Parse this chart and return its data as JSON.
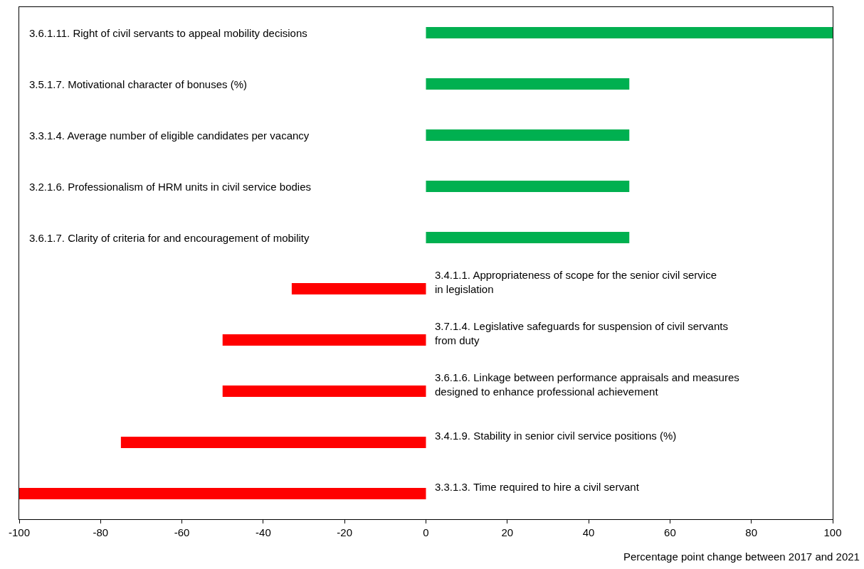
{
  "chart_data": {
    "type": "bar",
    "orientation": "horizontal",
    "categories": [
      "3.6.1.11. Right of civil servants to appeal mobility decisions",
      "3.5.1.7. Motivational character of bonuses (%)",
      "3.3.1.4. Average number of eligible candidates per vacancy",
      "3.2.1.6. Professionalism of HRM units in civil service bodies",
      "3.6.1.7. Clarity of criteria for and encouragement of mobility",
      "3.4.1.1. Appropriateness of scope for the senior civil service\nin legislation",
      "3.7.1.4. Legislative safeguards for suspension of civil servants\nfrom duty",
      "3.6.1.6. Linkage between performance appraisals and measures\ndesigned to enhance professional achievement",
      "3.4.1.9. Stability in senior civil service positions (%)",
      "3.3.1.3. Time required to hire a civil servant"
    ],
    "values": [
      100,
      50,
      50,
      50,
      50,
      -33,
      -50,
      -50,
      -75,
      -100
    ],
    "colors": [
      "#00b050",
      "#00b050",
      "#00b050",
      "#00b050",
      "#00b050",
      "#ff0000",
      "#ff0000",
      "#ff0000",
      "#ff0000",
      "#ff0000"
    ],
    "xlim": [
      -100,
      100
    ],
    "xticks": [
      -100,
      -80,
      -60,
      -40,
      -20,
      0,
      20,
      40,
      60,
      80,
      100
    ],
    "xlabel": "Percentage point change between 2017 and 2021"
  }
}
